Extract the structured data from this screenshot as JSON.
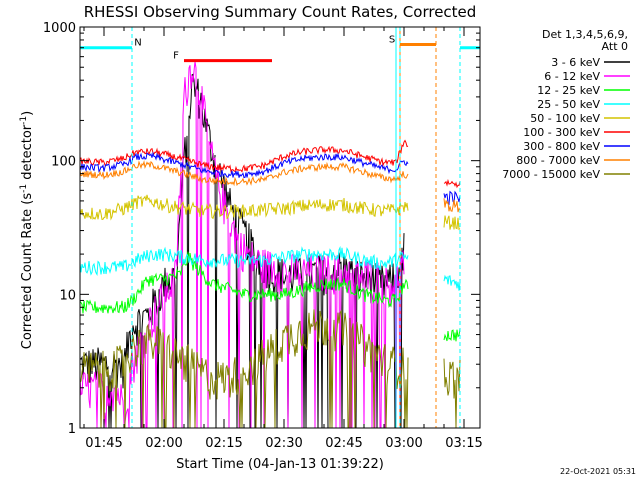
{
  "chart_data": {
    "type": "line",
    "title": "RHESSI Observing Summary Count Rates, Corrected",
    "xlabel": "Start Time (04-Jan-13 01:39:22)",
    "ylabel": "Corrected Count Rate (s⁻¹ detector⁻¹)",
    "ylabel_parts": {
      "main": "Corrected Count Rate (s",
      "sup1": "-1",
      "mid": " detector",
      "sup2": "-1",
      "end": ")"
    },
    "yscale": "log",
    "ylim": [
      1,
      1000
    ],
    "y_ticks": [
      1,
      10,
      100,
      1000
    ],
    "y_tick_labels": [
      "1",
      "10",
      "100",
      "1000"
    ],
    "xlim": [
      "01:39",
      "03:19"
    ],
    "x_ticks": [
      "01:45",
      "02:00",
      "02:15",
      "02:30",
      "02:45",
      "03:00",
      "03:15"
    ],
    "legend_header": [
      "Det 1,3,4,5,6,9,",
      "Att 0"
    ],
    "legend_position": "right",
    "series": [
      {
        "name": "3 - 6 keV",
        "color": "#000000",
        "points": [
          [
            "01:39",
            3
          ],
          [
            "01:44",
            3
          ],
          [
            "01:50",
            3
          ],
          [
            "01:52",
            6
          ],
          [
            "01:56",
            7
          ],
          [
            "02:00",
            12
          ],
          [
            "02:03",
            14
          ],
          [
            "02:05",
            100
          ],
          [
            "02:07",
            380
          ],
          [
            "02:09",
            300
          ],
          [
            "02:11",
            160
          ],
          [
            "02:13",
            95
          ],
          [
            "02:15",
            65
          ],
          [
            "02:17",
            42
          ],
          [
            "02:19",
            33
          ],
          [
            "02:21",
            26
          ],
          [
            "02:24",
            18
          ],
          [
            "02:27",
            15
          ],
          [
            "02:30",
            14
          ],
          [
            "02:35",
            14
          ],
          [
            "02:40",
            15
          ],
          [
            "02:44",
            16
          ],
          [
            "02:48",
            14
          ],
          [
            "02:52",
            13
          ],
          [
            "02:56",
            12
          ],
          [
            "02:58",
            14
          ],
          [
            "03:00",
            22
          ]
        ]
      },
      {
        "name": "6 - 12 keV",
        "color": "#ff00ff",
        "points": [
          [
            "01:39",
            2
          ],
          [
            "01:44",
            2
          ],
          [
            "01:48",
            2
          ],
          [
            "01:50",
            1.5
          ],
          [
            "01:52",
            3
          ],
          [
            "01:56",
            6
          ],
          [
            "02:00",
            10
          ],
          [
            "02:03",
            14
          ],
          [
            "02:05",
            300
          ],
          [
            "02:07",
            560
          ],
          [
            "02:09",
            350
          ],
          [
            "02:11",
            150
          ],
          [
            "02:13",
            75
          ],
          [
            "02:15",
            48
          ],
          [
            "02:17",
            33
          ],
          [
            "02:19",
            24
          ],
          [
            "02:21",
            20
          ],
          [
            "02:24",
            17
          ],
          [
            "02:27",
            16
          ],
          [
            "02:30",
            15
          ],
          [
            "02:35",
            15
          ],
          [
            "02:40",
            15
          ],
          [
            "02:44",
            15
          ],
          [
            "02:48",
            14
          ],
          [
            "02:52",
            14
          ],
          [
            "02:56",
            12
          ],
          [
            "02:58",
            13
          ],
          [
            "03:00",
            18
          ]
        ]
      },
      {
        "name": "12 - 25 keV",
        "color": "#00ff00",
        "points": [
          [
            "01:39",
            8
          ],
          [
            "01:44",
            8
          ],
          [
            "01:50",
            8
          ],
          [
            "01:52",
            9
          ],
          [
            "01:56",
            13
          ],
          [
            "02:00",
            13
          ],
          [
            "02:04",
            14
          ],
          [
            "02:06",
            19
          ],
          [
            "02:08",
            16
          ],
          [
            "02:12",
            12
          ],
          [
            "02:16",
            11
          ],
          [
            "02:20",
            10
          ],
          [
            "02:25",
            10
          ],
          [
            "02:30",
            10
          ],
          [
            "02:35",
            11
          ],
          [
            "02:40",
            12
          ],
          [
            "02:45",
            12
          ],
          [
            "02:50",
            10
          ],
          [
            "02:55",
            9
          ],
          [
            "02:58",
            9
          ],
          [
            "03:00",
            12
          ],
          [
            "03:10",
            5
          ],
          [
            "03:14",
            5
          ]
        ]
      },
      {
        "name": "25 - 50 keV",
        "color": "#00ffff",
        "points": [
          [
            "01:39",
            16
          ],
          [
            "01:45",
            16
          ],
          [
            "01:50",
            16
          ],
          [
            "01:53",
            18
          ],
          [
            "01:57",
            20
          ],
          [
            "02:00",
            20
          ],
          [
            "02:05",
            19
          ],
          [
            "02:10",
            18
          ],
          [
            "02:15",
            18
          ],
          [
            "02:20",
            18
          ],
          [
            "02:25",
            18
          ],
          [
            "02:30",
            19
          ],
          [
            "02:35",
            20
          ],
          [
            "02:40",
            20
          ],
          [
            "02:45",
            20
          ],
          [
            "02:50",
            18
          ],
          [
            "02:55",
            17
          ],
          [
            "02:58",
            18
          ],
          [
            "03:00",
            19
          ],
          [
            "03:10",
            13
          ],
          [
            "03:14",
            12
          ]
        ]
      },
      {
        "name": "50 - 100 keV",
        "color": "#d4c400",
        "points": [
          [
            "01:39",
            41
          ],
          [
            "01:45",
            40
          ],
          [
            "01:50",
            44
          ],
          [
            "01:53",
            49
          ],
          [
            "01:57",
            50
          ],
          [
            "02:00",
            47
          ],
          [
            "02:05",
            44
          ],
          [
            "02:10",
            42
          ],
          [
            "02:15",
            42
          ],
          [
            "02:20",
            42
          ],
          [
            "02:25",
            43
          ],
          [
            "02:30",
            44
          ],
          [
            "02:35",
            46
          ],
          [
            "02:40",
            47
          ],
          [
            "02:45",
            47
          ],
          [
            "02:50",
            44
          ],
          [
            "02:55",
            42
          ],
          [
            "02:58",
            43
          ],
          [
            "03:00",
            46
          ],
          [
            "03:10",
            35
          ],
          [
            "03:14",
            34
          ]
        ]
      },
      {
        "name": "100 - 300 keV",
        "color": "#ff0000",
        "points": [
          [
            "01:39",
            99
          ],
          [
            "01:45",
            97
          ],
          [
            "01:50",
            104
          ],
          [
            "01:53",
            116
          ],
          [
            "01:57",
            117
          ],
          [
            "02:00",
            112
          ],
          [
            "02:05",
            102
          ],
          [
            "02:10",
            92
          ],
          [
            "02:15",
            88
          ],
          [
            "02:20",
            87
          ],
          [
            "02:25",
            92
          ],
          [
            "02:30",
            108
          ],
          [
            "02:35",
            117
          ],
          [
            "02:40",
            121
          ],
          [
            "02:45",
            119
          ],
          [
            "02:50",
            107
          ],
          [
            "02:55",
            97
          ],
          [
            "02:58",
            97
          ],
          [
            "03:00",
            140
          ],
          [
            "03:10",
            69
          ],
          [
            "03:14",
            67
          ]
        ]
      },
      {
        "name": "300 - 800 keV",
        "color": "#0000ff",
        "points": [
          [
            "01:39",
            90
          ],
          [
            "01:45",
            88
          ],
          [
            "01:50",
            94
          ],
          [
            "01:53",
            106
          ],
          [
            "01:57",
            108
          ],
          [
            "02:00",
            102
          ],
          [
            "02:05",
            93
          ],
          [
            "02:10",
            84
          ],
          [
            "02:15",
            80
          ],
          [
            "02:20",
            79
          ],
          [
            "02:25",
            83
          ],
          [
            "02:30",
            96
          ],
          [
            "02:35",
            104
          ],
          [
            "02:40",
            107
          ],
          [
            "02:45",
            106
          ],
          [
            "02:50",
            96
          ],
          [
            "02:55",
            87
          ],
          [
            "02:58",
            86
          ],
          [
            "03:00",
            100
          ],
          [
            "03:10",
            54
          ],
          [
            "03:14",
            52
          ]
        ]
      },
      {
        "name": "800 - 7000 keV",
        "color": "#ff8000",
        "points": [
          [
            "01:39",
            80
          ],
          [
            "01:45",
            78
          ],
          [
            "01:50",
            83
          ],
          [
            "01:53",
            92
          ],
          [
            "01:57",
            93
          ],
          [
            "02:00",
            88
          ],
          [
            "02:05",
            80
          ],
          [
            "02:10",
            72
          ],
          [
            "02:15",
            70
          ],
          [
            "02:20",
            70
          ],
          [
            "02:25",
            72
          ],
          [
            "02:30",
            82
          ],
          [
            "02:35",
            88
          ],
          [
            "02:40",
            90
          ],
          [
            "02:45",
            90
          ],
          [
            "02:50",
            82
          ],
          [
            "02:55",
            74
          ],
          [
            "02:58",
            73
          ],
          [
            "03:00",
            80
          ],
          [
            "03:10",
            47
          ],
          [
            "03:14",
            45
          ]
        ]
      },
      {
        "name": "7000 - 15000 keV",
        "color": "#808000",
        "points": [
          [
            "01:39",
            2.8
          ],
          [
            "01:45",
            2.8
          ],
          [
            "01:50",
            3.2
          ],
          [
            "01:53",
            4.2
          ],
          [
            "01:57",
            4.5
          ],
          [
            "02:00",
            4.2
          ],
          [
            "02:04",
            3.4
          ],
          [
            "02:08",
            2.8
          ],
          [
            "02:12",
            2.4
          ],
          [
            "02:16",
            2.4
          ],
          [
            "02:20",
            2.8
          ],
          [
            "02:25",
            3.5
          ],
          [
            "02:30",
            4.7
          ],
          [
            "02:35",
            5.6
          ],
          [
            "02:40",
            6.0
          ],
          [
            "02:45",
            5.5
          ],
          [
            "02:50",
            4.3
          ],
          [
            "02:55",
            3.3
          ],
          [
            "02:58",
            3.0
          ],
          [
            "03:00",
            3.0
          ],
          [
            "03:10",
            2.5
          ],
          [
            "03:14",
            2.5
          ]
        ]
      }
    ],
    "flags": [
      {
        "label": "N",
        "color": "#00ffff",
        "y": 700,
        "segments": [
          [
            "01:39",
            "01:52"
          ],
          [
            "03:14",
            "03:19"
          ]
        ]
      },
      {
        "label": "F",
        "color": "#ff0000",
        "y": 560,
        "segments": [
          [
            "02:05",
            "02:27"
          ]
        ]
      },
      {
        "label": "S",
        "color": "#ff8000",
        "y": 740,
        "segments": [
          [
            "02:59",
            "03:08"
          ]
        ]
      }
    ],
    "vlines": [
      {
        "time": "01:52",
        "color": "#00ffff",
        "style": "dashed"
      },
      {
        "time": "02:58",
        "color": "#00ffff",
        "style": "solid"
      },
      {
        "time": "02:59",
        "color": "#ff8000",
        "style": "solid"
      },
      {
        "time": "02:59",
        "color": "#00ffff",
        "style": "dashed"
      },
      {
        "time": "03:08",
        "color": "#ff8000",
        "style": "dashed"
      },
      {
        "time": "03:14",
        "color": "#00ffff",
        "style": "dashed"
      }
    ]
  },
  "footer": {
    "timestamp": "22-Oct-2021 05:31"
  }
}
